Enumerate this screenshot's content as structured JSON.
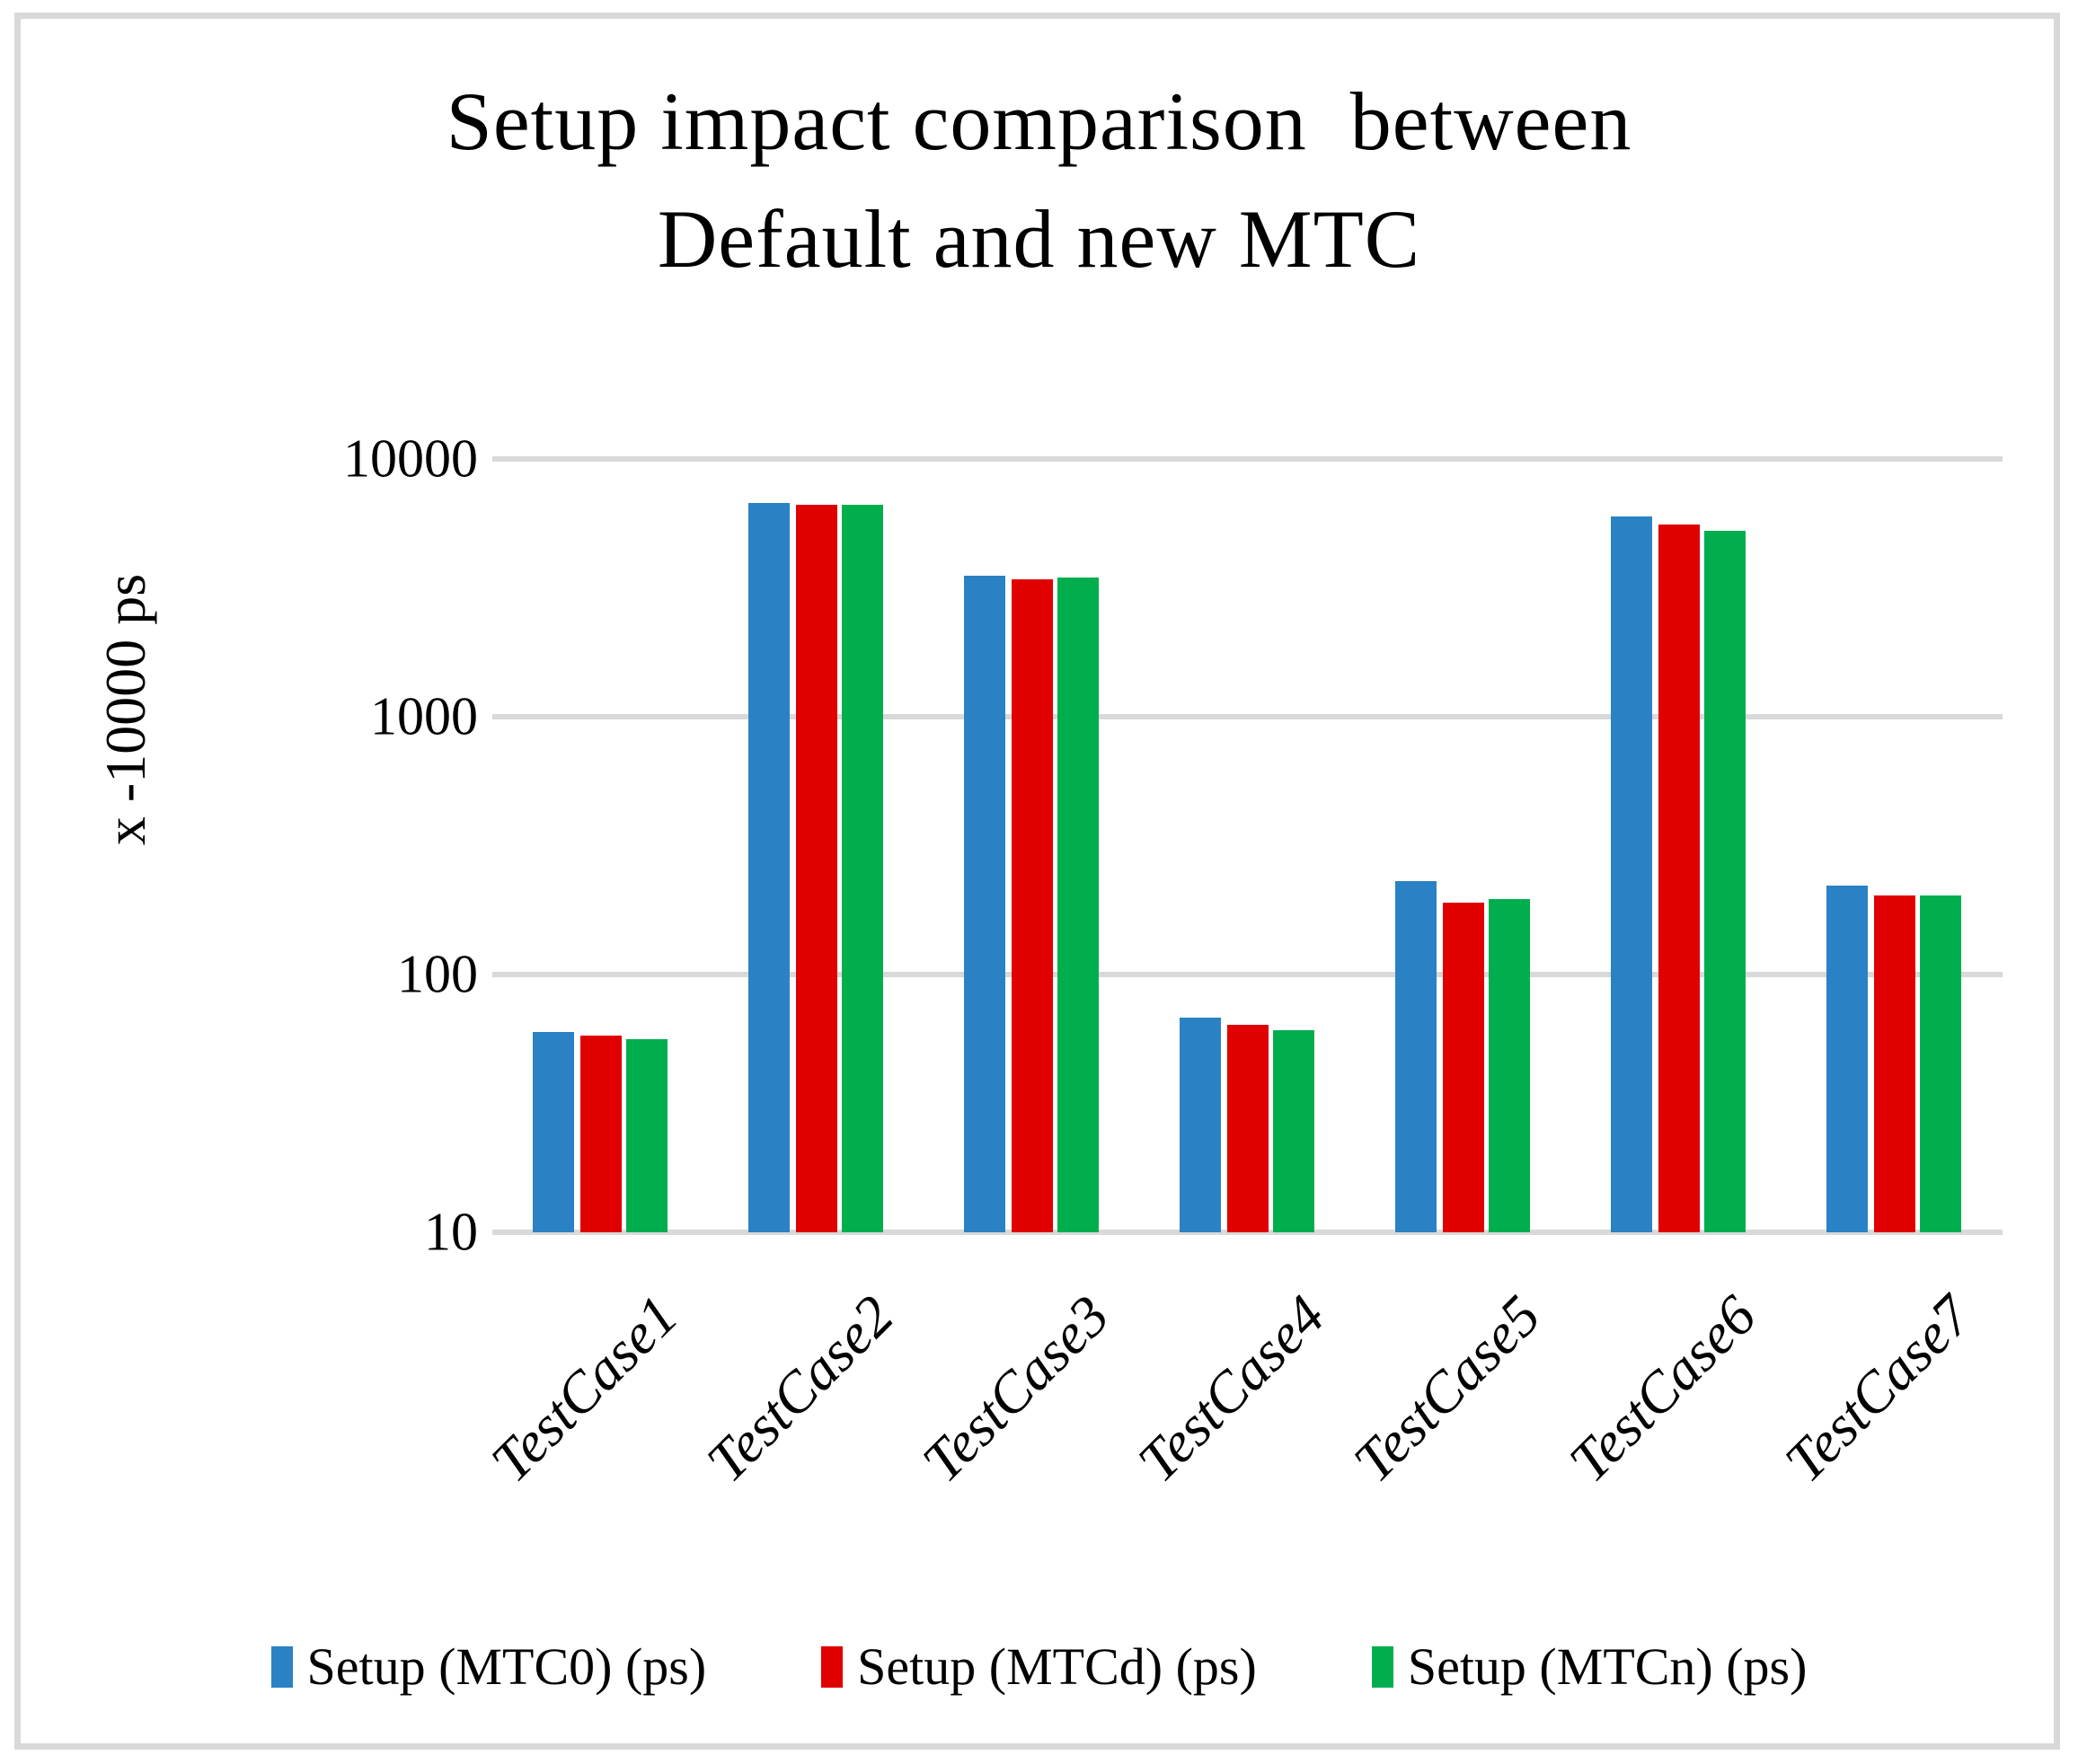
{
  "title": "Setup impact comparison  between\nDefault and new MTC",
  "y_axis": {
    "label": "x -10000 ps",
    "tick_labels": [
      "10000",
      "1000",
      "100",
      "10"
    ]
  },
  "legend": {
    "position": "bottom",
    "entries": [
      "Setup (MTC0) (ps)",
      "Setup (MTCd) (ps)",
      "Setup (MTCn) (ps)"
    ]
  },
  "colors": {
    "series_blue": "#2a82c4",
    "series_red": "#e00000",
    "series_green": "#00ae4e",
    "gridline": "#d9d9d9",
    "frame_border": "#d9d9d9"
  },
  "chart_data": {
    "type": "bar",
    "title": "Setup impact comparison  between Default and new MTC",
    "xlabel": "",
    "ylabel": "x -10000 ps",
    "y_scale": "log",
    "ylim": [
      10,
      10000
    ],
    "gridlines": [
      10000,
      1000,
      100,
      10
    ],
    "grid": true,
    "legend_position": "bottom",
    "categories": [
      "TestCase1",
      "TestCase2",
      "TestCase3",
      "TestCase4",
      "TestCase5",
      "TestCase6",
      "TestCase7"
    ],
    "series": [
      {
        "name": "Setup (MTC0) (ps)",
        "color": "#2a82c4",
        "values": [
          60,
          6750,
          3520,
          68,
          231,
          6000,
          221
        ]
      },
      {
        "name": "Setup (MTCd) (ps)",
        "color": "#e00000",
        "values": [
          58,
          6640,
          3410,
          64,
          190,
          5560,
          203
        ]
      },
      {
        "name": "Setup (MTCn) (ps)",
        "color": "#00ae4e",
        "values": [
          56,
          6660,
          3470,
          61,
          196,
          5280,
          203
        ]
      }
    ]
  }
}
